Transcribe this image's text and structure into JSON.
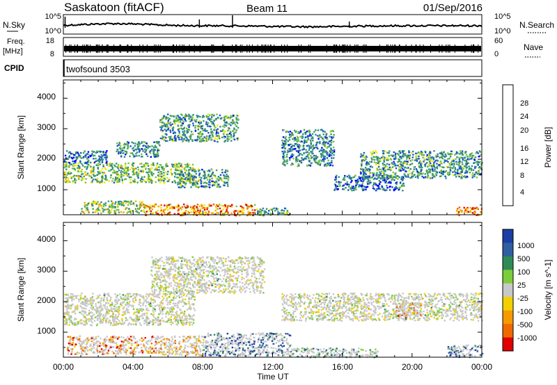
{
  "header": {
    "station": "Saskatoon (fitACF)",
    "beam": "Beam 11",
    "date": "01/Sep/2016"
  },
  "nsky_strip": {
    "left_label": "N.Sky",
    "left_ticks": [
      "10^5",
      "10^0"
    ],
    "right_label": "N.Search",
    "right_ticks": [
      "10^5",
      "10^0"
    ]
  },
  "freq_strip": {
    "left_label": "Freq.",
    "left_unit": "[MHz]",
    "left_ticks": [
      "18",
      "8"
    ],
    "right_label": "Nave",
    "right_ticks": [
      "60",
      "0"
    ]
  },
  "cpid_strip": {
    "label": "CPID",
    "program": "twofsound 3503"
  },
  "time_axis": {
    "xlabel": "Time UT",
    "ticks": [
      "00:00",
      "04:00",
      "08:00",
      "12:00",
      "16:00",
      "20:00",
      "00:00"
    ]
  },
  "colors": {
    "power": [
      "#0000ff",
      "#1c54c8",
      "#2e8c8c",
      "#3ea15a",
      "#7cc140",
      "#f2e600",
      "#f7a800",
      "#f26000",
      "#e00000"
    ],
    "velocity": [
      "#1a3ea3",
      "#2f5fa0",
      "#2f8b56",
      "#7ccd3a",
      "#c8c8c8",
      "#f2d000",
      "#f59a00",
      "#ef6a00",
      "#e00000"
    ]
  },
  "chart_data": [
    {
      "type": "heatmap",
      "title": "",
      "xlabel": "",
      "ylabel": "Slant Range [km]",
      "xlim": [
        0,
        24
      ],
      "ylim": [
        180,
        4600
      ],
      "y_ticks": [
        "1000",
        "2000",
        "3000",
        "4000"
      ],
      "colorbar_label": "Power [dB]",
      "colorbar_ticks": [
        "4",
        "8",
        "12",
        "16",
        "20",
        "24",
        "28"
      ],
      "crange": [
        0,
        32
      ],
      "regions": [
        {
          "t0": 0.0,
          "t1": 7.5,
          "r0": 1250,
          "r1": 1900,
          "level": 0.45
        },
        {
          "t0": 0.0,
          "t1": 2.5,
          "r0": 1900,
          "r1": 2300,
          "level": 0.2
        },
        {
          "t0": 3.0,
          "t1": 5.5,
          "r0": 2100,
          "r1": 2600,
          "level": 0.3
        },
        {
          "t0": 5.5,
          "t1": 10.0,
          "r0": 2600,
          "r1": 3500,
          "level": 0.35
        },
        {
          "t0": 6.5,
          "t1": 9.5,
          "r0": 1100,
          "r1": 1700,
          "level": 0.35
        },
        {
          "t0": 1.0,
          "t1": 4.5,
          "r0": 250,
          "r1": 650,
          "level": 0.5
        },
        {
          "t0": 4.5,
          "t1": 11.0,
          "r0": 180,
          "r1": 550,
          "level": 0.75
        },
        {
          "t0": 11.0,
          "t1": 13.0,
          "r0": 180,
          "r1": 420,
          "level": 0.4
        },
        {
          "t0": 12.5,
          "t1": 15.5,
          "r0": 1800,
          "r1": 3000,
          "level": 0.3
        },
        {
          "t0": 15.5,
          "t1": 19.5,
          "r0": 1000,
          "r1": 1500,
          "level": 0.25
        },
        {
          "t0": 17.0,
          "t1": 24.0,
          "r0": 1400,
          "r1": 2300,
          "level": 0.35
        },
        {
          "t0": 22.5,
          "t1": 24.0,
          "r0": 180,
          "r1": 450,
          "level": 0.8
        }
      ]
    },
    {
      "type": "heatmap",
      "title": "",
      "xlabel": "Time UT",
      "ylabel": "Slant Range [km]",
      "xlim": [
        0,
        24
      ],
      "ylim": [
        180,
        4600
      ],
      "y_ticks": [
        "1000",
        "2000",
        "3000",
        "4000"
      ],
      "colorbar_label": "Velocity [m s^-1]",
      "colorbar_ticks": [
        "1000",
        "500",
        "100",
        "25",
        "-25",
        "-100",
        "-500",
        "-1000"
      ],
      "regions": [
        {
          "t0": 0.0,
          "t1": 7.5,
          "r0": 1250,
          "r1": 2300,
          "level": 0.5
        },
        {
          "t0": 5.0,
          "t1": 11.5,
          "r0": 2300,
          "r1": 3500,
          "level": 0.5
        },
        {
          "t0": 12.5,
          "t1": 24.0,
          "r0": 1400,
          "r1": 2300,
          "level": 0.5
        },
        {
          "t0": 0.2,
          "t1": 5.5,
          "r0": 300,
          "r1": 900,
          "level": 0.8
        },
        {
          "t0": 5.5,
          "t1": 8.0,
          "r0": 250,
          "r1": 900,
          "level": 0.7
        },
        {
          "t0": 8.0,
          "t1": 13.0,
          "r0": 250,
          "r1": 1000,
          "level": 0.15
        },
        {
          "t0": 13.0,
          "t1": 18.0,
          "r0": 200,
          "r1": 500,
          "level": 0.3
        },
        {
          "t0": 19.0,
          "t1": 20.5,
          "r0": 1500,
          "r1": 2000,
          "level": 0.75
        },
        {
          "t0": 22.0,
          "t1": 24.0,
          "r0": 200,
          "r1": 600,
          "level": 0.15
        }
      ]
    }
  ]
}
